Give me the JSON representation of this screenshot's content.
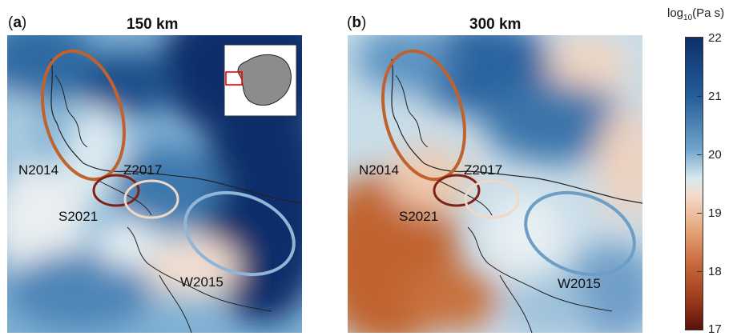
{
  "panels": [
    {
      "letter": "a",
      "title": "150 km",
      "regions": [
        "N2014",
        "Z2017",
        "S2021",
        "W2015"
      ]
    },
    {
      "letter": "b",
      "title": "300 km",
      "regions": [
        "N2014",
        "Z2017",
        "S2021",
        "W2015"
      ]
    }
  ],
  "colorbar": {
    "title_prefix": "log",
    "title_sub": "10",
    "title_suffix": "(Pa s)",
    "ticks": [
      "22",
      "21",
      "20",
      "19",
      "18",
      "17"
    ],
    "range": [
      17,
      22
    ]
  },
  "region_colors": {
    "N2014": "#c0622e",
    "Z2017": "#f0d8c6",
    "S2021": "#7b2416",
    "W2015": "#6d9ec6"
  }
}
